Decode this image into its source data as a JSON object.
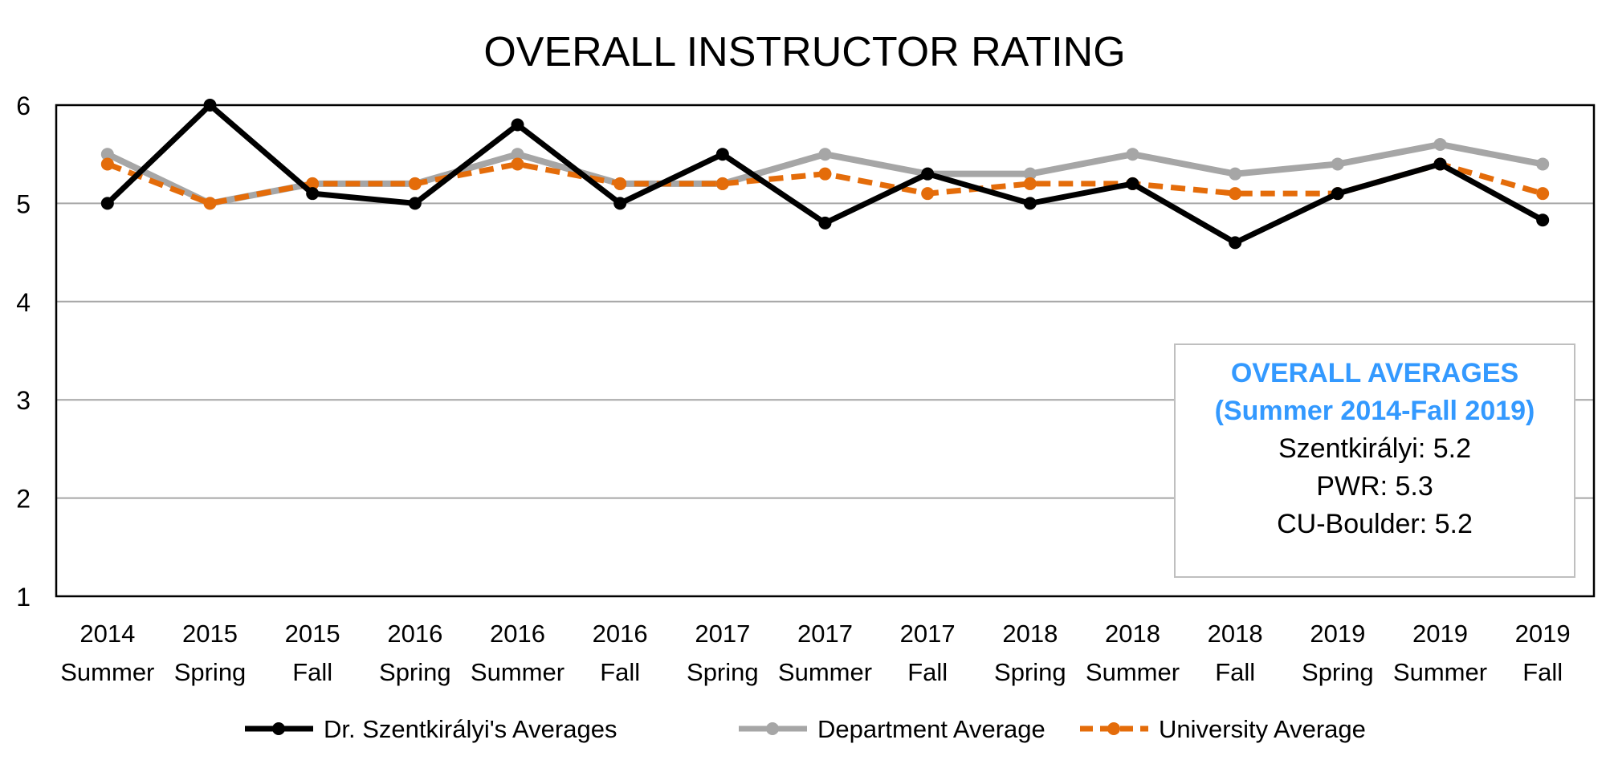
{
  "chart_data": {
    "type": "line",
    "title": "OVERALL INSTRUCTOR RATING",
    "xlabel": "",
    "ylabel": "",
    "ylim": [
      1,
      6
    ],
    "yticks": [
      "1",
      "2",
      "3",
      "4",
      "5",
      "6"
    ],
    "grid": true,
    "legend_position": "bottom",
    "categories": [
      [
        "2014",
        "Summer"
      ],
      [
        "2015",
        "Spring"
      ],
      [
        "2015",
        "Fall"
      ],
      [
        "2016",
        "Spring"
      ],
      [
        "2016",
        "Summer"
      ],
      [
        "2016",
        "Fall"
      ],
      [
        "2017",
        "Spring"
      ],
      [
        "2017",
        "Summer"
      ],
      [
        "2017",
        "Fall"
      ],
      [
        "2018",
        "Spring"
      ],
      [
        "2018",
        "Summer"
      ],
      [
        "2018",
        "Fall"
      ],
      [
        "2019",
        "Spring"
      ],
      [
        "2019",
        "Summer"
      ],
      [
        "2019",
        "Fall"
      ]
    ],
    "series": [
      {
        "name": "Dr. Szentkirályi's Averages",
        "color": "#000000",
        "dashed": false,
        "values": [
          5.0,
          6.0,
          5.1,
          5.0,
          5.8,
          5.0,
          5.5,
          4.8,
          5.3,
          5.0,
          5.2,
          4.6,
          5.1,
          5.4,
          4.83
        ]
      },
      {
        "name": "Department Average",
        "color": "#a6a6a6",
        "dashed": false,
        "values": [
          5.5,
          5.0,
          5.2,
          5.2,
          5.5,
          5.2,
          5.2,
          5.5,
          5.3,
          5.3,
          5.5,
          5.3,
          5.4,
          5.6,
          5.4
        ]
      },
      {
        "name": "University Average",
        "color": "#e46c0a",
        "dashed": true,
        "values": [
          5.4,
          5.0,
          5.2,
          5.2,
          5.4,
          5.2,
          5.2,
          5.3,
          5.1,
          5.2,
          5.2,
          5.1,
          5.1,
          5.4,
          5.1
        ]
      }
    ],
    "annotation": {
      "title_line1": "OVERALL AVERAGES",
      "title_line2": "(Summer 2014-Fall 2019)",
      "lines": [
        "Szentkirályi: 5.2",
        "PWR: 5.3",
        "CU-Boulder: 5.2"
      ],
      "title_color": "#3399ff"
    }
  }
}
